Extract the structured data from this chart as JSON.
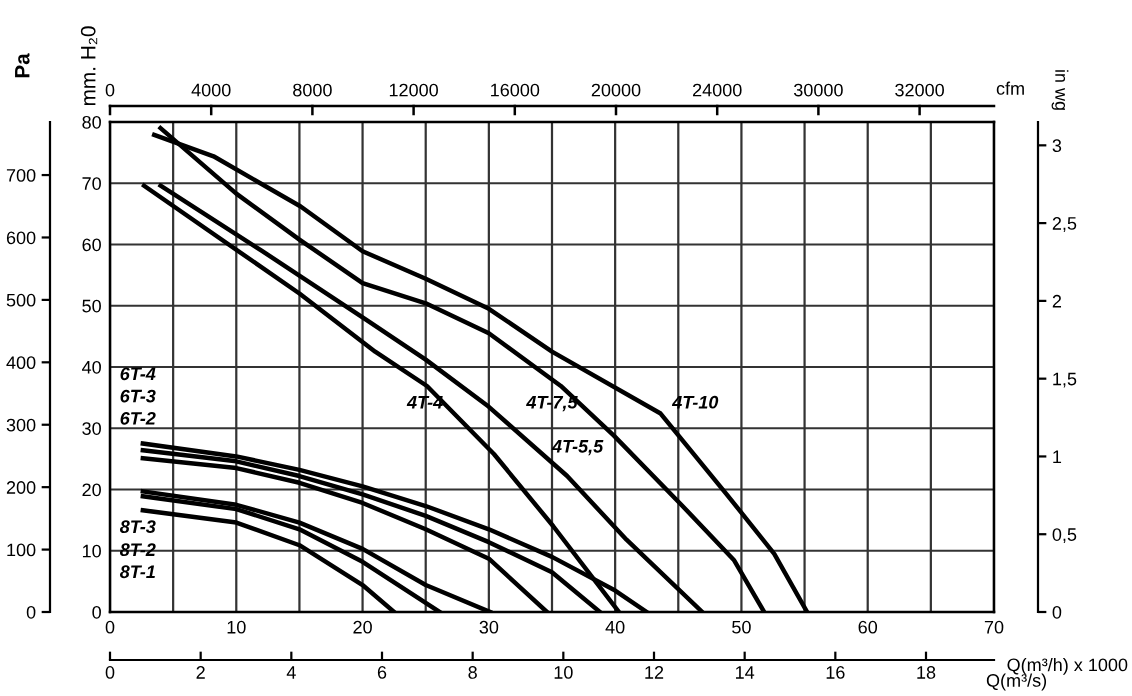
{
  "chart_data": [
    {
      "type": "line",
      "grid": true,
      "marker": "none",
      "line_style": "solid",
      "xlabel": "Q(m³/h) x 1000",
      "ylabel": "mm. H₂0",
      "y2label": "Pa",
      "y3label": "in wg",
      "x2label": "Q(m³/s)",
      "xlim": [
        0,
        70
      ],
      "xticks": [
        0,
        {
          "value": 5,
          "label": null
        },
        10,
        {
          "value": 15,
          "label": null
        },
        20,
        {
          "value": 25,
          "label": null
        },
        30,
        {
          "value": 35,
          "label": null
        },
        40,
        {
          "value": 45,
          "label": null
        },
        50,
        {
          "value": 55,
          "label": null
        },
        60,
        {
          "value": 65,
          "label": null
        },
        70
      ],
      "ylim": [
        0,
        80
      ],
      "yticks": [
        0,
        10,
        20,
        30,
        40,
        50,
        60,
        70,
        80
      ],
      "y2lim": [
        0,
        785
      ],
      "y2ticks": [
        0,
        100,
        200,
        300,
        400,
        500,
        600,
        700
      ],
      "y3lim": [
        0,
        3.15
      ],
      "y3ticks": [
        0,
        {
          "value": 0.5,
          "label": "0,5"
        },
        1,
        {
          "value": 1.5,
          "label": "1,5"
        },
        2,
        {
          "value": 2.5,
          "label": "2,5"
        },
        3
      ],
      "x2lim": [
        0,
        19.5
      ],
      "x2ticks": [
        0,
        2,
        4,
        6,
        8,
        10,
        12,
        14,
        16,
        18
      ],
      "series": [
        {
          "name": "4T-10",
          "color": "#000000",
          "x": [
            3.5,
            8.2,
            15.1,
            20,
            25,
            30,
            35,
            43.6,
            48.8,
            52.6,
            55.2
          ],
          "values": [
            77.9,
            74.4,
            66.2,
            58.9,
            54.4,
            49.5,
            42.5,
            32.4,
            19.3,
            9.5,
            0
          ]
        },
        {
          "name": "4T-7,5",
          "color": "#000000",
          "x": [
            4,
            10,
            15,
            20,
            25,
            30,
            35.7,
            39.9,
            45.2,
            49.4,
            51.8
          ],
          "values": [
            79,
            68.3,
            60.8,
            53.7,
            50.4,
            45.5,
            36.9,
            28.8,
            17.6,
            8.5,
            0
          ]
        },
        {
          "name": "4T-5,5",
          "color": "#000000",
          "x": [
            4,
            12,
            20.3,
            25,
            30,
            36.2,
            40.9,
            46.9
          ],
          "values": [
            69.6,
            59,
            47.7,
            41.2,
            33.5,
            22.2,
            11.8,
            0
          ]
        },
        {
          "name": "4T-4",
          "color": "#000000",
          "x": [
            2.7,
            8,
            15,
            21,
            25.1,
            30.4,
            35.1,
            40.3
          ],
          "values": [
            69.6,
            62,
            52,
            42.5,
            36.9,
            25.8,
            14,
            0
          ]
        },
        {
          "color": "#000000",
          "x": [
            2.6,
            10,
            15,
            20,
            25,
            30,
            35,
            40,
            42.5
          ],
          "values": [
            27.5,
            25.4,
            23.2,
            20.5,
            17.3,
            13.5,
            9,
            3.5,
            0
          ]
        },
        {
          "color": "#000000",
          "x": [
            2.6,
            10,
            15,
            20,
            25,
            30,
            35,
            38.8
          ],
          "values": [
            26.4,
            24.6,
            22.2,
            19.2,
            15.7,
            11.4,
            6.5,
            0
          ]
        },
        {
          "color": "#000000",
          "x": [
            2.6,
            10,
            15,
            20,
            25,
            30,
            34.6
          ],
          "values": [
            25.1,
            23.5,
            21.1,
            17.8,
            13.5,
            8.7,
            0
          ]
        },
        {
          "color": "#000000",
          "x": [
            2.6,
            10,
            15,
            20,
            25,
            30.1
          ],
          "values": [
            19.7,
            17.5,
            14.6,
            10.3,
            4.4,
            0
          ]
        },
        {
          "color": "#000000",
          "x": [
            2.6,
            10,
            15,
            20,
            25,
            26.1
          ],
          "values": [
            18.9,
            16.8,
            13.5,
            8.2,
            1.5,
            0
          ]
        },
        {
          "color": "#000000",
          "x": [
            2.6,
            10,
            15,
            20,
            22.5
          ],
          "values": [
            16.6,
            14.6,
            10.9,
            4.4,
            0
          ]
        }
      ],
      "annotations": [
        "6T-4",
        "6T-3",
        "6T-2",
        "8T-3",
        "8T-2",
        "8T-1"
      ]
    },
    {
      "type": "other",
      "xlabel": "cfm",
      "annotations": [
        "0",
        "4000",
        "8000",
        "12000",
        "16000",
        "20000",
        "24000",
        "30000",
        "32000"
      ]
    }
  ]
}
